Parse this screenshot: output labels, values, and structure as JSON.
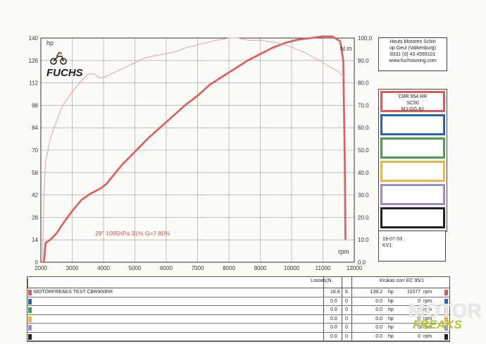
{
  "chart_data": {
    "type": "line",
    "x_axis": {
      "label": "rpm",
      "ticks": [
        "2000",
        "3000",
        "4000",
        "5000",
        "6000",
        "7000",
        "8000",
        "9000",
        "10000",
        "11000",
        "12000"
      ],
      "range": [
        2000,
        12000
      ]
    },
    "left_axis": {
      "label": "hp",
      "ticks": [
        "0",
        "14",
        "28",
        "42",
        "56",
        "70",
        "84",
        "98",
        "112",
        "126",
        "140"
      ],
      "range": [
        0,
        140
      ]
    },
    "right_axis": {
      "label": "N.m",
      "ticks": [
        "0.0",
        "10.0",
        "20.0",
        "30.0",
        "40.0",
        "50.0",
        "60.0",
        "70.0",
        "80.0",
        "90.0",
        "100.0"
      ],
      "range": [
        0,
        100
      ]
    },
    "grid": true,
    "conditions": "29°  1005hPa  31%   G=7.80%",
    "series": [
      {
        "axis": "hp",
        "color": "#e05a5a",
        "style": "thick",
        "x": [
          2100,
          2150,
          2300,
          2500,
          2700,
          3000,
          3300,
          3600,
          3900,
          4100,
          4300,
          4600,
          5000,
          5400,
          5800,
          6200,
          6600,
          7000,
          7400,
          7800,
          8200,
          8600,
          9000,
          9400,
          9800,
          10200,
          10600,
          11000,
          11300,
          11550,
          11650,
          11700,
          11720
        ],
        "y": [
          0,
          12,
          14,
          18,
          24,
          32,
          39,
          43,
          46,
          49,
          54,
          61,
          69,
          77,
          84,
          91,
          98,
          104,
          111,
          116,
          121,
          126,
          130,
          134,
          137,
          139,
          140,
          141,
          141,
          138,
          126,
          60,
          14
        ]
      },
      {
        "axis": "N.m",
        "color": "#e8a0a0",
        "style": "thin",
        "x": [
          2050,
          2100,
          2150,
          2200,
          2300,
          2500,
          2700,
          3000,
          3300,
          3500,
          3700,
          3900,
          4100,
          4400,
          4700,
          5000,
          5300,
          5600,
          6000,
          6300,
          6700,
          7000,
          7300,
          7600,
          8000,
          8300,
          8600,
          9000,
          9500,
          10000,
          10500,
          11000,
          11500,
          11700
        ],
        "y": [
          0,
          30,
          45,
          48,
          55,
          63,
          70,
          76,
          81,
          84,
          84,
          82,
          83,
          85,
          87,
          89,
          91,
          92,
          93,
          94,
          96,
          97,
          98,
          99,
          100,
          100,
          99,
          99,
          98,
          96,
          93,
          89,
          85,
          82
        ]
      }
    ]
  },
  "dealer": {
    "lines": [
      "Heuts Motoren Schin",
      "op Geul  (Valkenburg)",
      "0031 (0) 43 4593101",
      "www.fuchstuning.com"
    ]
  },
  "bike_info": {
    "lines": [
      "CBR 954 RR",
      "SC50",
      "MJ-GG-61"
    ]
  },
  "swatch_colors": [
    "#e05a5a",
    "#2a64b0",
    "#4aa04a",
    "#e8b84a",
    "#a58ac8",
    "#222222"
  ],
  "run_info": {
    "date": "19-07-03",
    "code": "KV1"
  },
  "logo": {
    "text": "FUCHS"
  },
  "table": {
    "losses_label": "Losses(N.",
    "corr_label": "Krukas corr EC 95/1",
    "rows": [
      {
        "color": "#e05a5a",
        "label": "MOTORFREAKS TEST CBR900RR",
        "loss": "16.8",
        "n": "6",
        "hp": "139.2",
        "hp_unit": "hp",
        "rpm": "11077",
        "rpm_unit": "rpm"
      },
      {
        "color": "#2a64b0",
        "label": "",
        "loss": "0.0",
        "n": "0",
        "hp": "0.0",
        "hp_unit": "hp",
        "rpm": "0",
        "rpm_unit": "rpm"
      },
      {
        "color": "#4aa04a",
        "label": "",
        "loss": "0.0",
        "n": "0",
        "hp": "0.0",
        "hp_unit": "hp",
        "rpm": "0",
        "rpm_unit": "rpm"
      },
      {
        "color": "#e8b84a",
        "label": "",
        "loss": "0.0",
        "n": "0",
        "hp": "0.0",
        "hp_unit": "hp",
        "rpm": "0",
        "rpm_unit": "rpm"
      },
      {
        "color": "#a58ac8",
        "label": "",
        "loss": "0.0",
        "n": "0",
        "hp": "0.0",
        "hp_unit": "hp",
        "rpm": "0",
        "rpm_unit": "rpm"
      },
      {
        "color": "#222222",
        "label": "",
        "loss": "0.0",
        "n": "0",
        "hp": "0.0",
        "hp_unit": "hp",
        "rpm": "0",
        "rpm_unit": "rpm"
      }
    ]
  },
  "watermark": {
    "line1": "MOTOR",
    "line2": "FREAKS"
  }
}
